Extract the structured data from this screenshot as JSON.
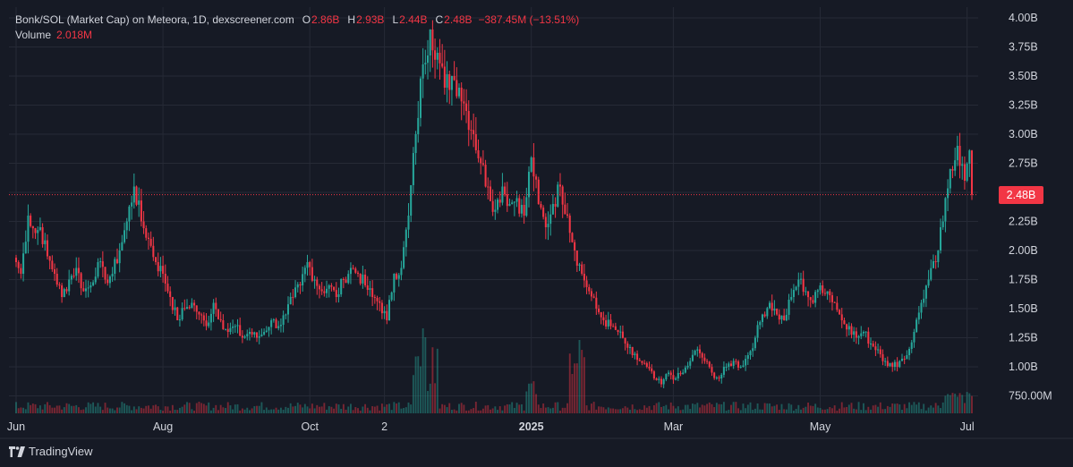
{
  "legend": {
    "title": "Bonk/SOL (Market Cap) on Meteora, 1D, dexscreener.com",
    "open_label": "O",
    "open_value": "2.86B",
    "high_label": "H",
    "high_value": "2.93B",
    "low_label": "L",
    "low_value": "2.44B",
    "close_label": "C",
    "close_value": "2.48B",
    "change": "−387.45M (−13.51%)",
    "volume_label": "Volume",
    "volume_value": "2.018M"
  },
  "price_badge": "2.48B",
  "branding": "TradingView",
  "colors": {
    "background": "#161a25",
    "up": "#26a69a",
    "down": "#f23645",
    "grid": "#262a36",
    "text": "#d1d4dc"
  },
  "chart_data": {
    "type": "candlestick",
    "title": "Bonk/SOL (Market Cap) on Meteora, 1D, dexscreener.com",
    "y_axis": {
      "ticks": [
        "4.00B",
        "3.75B",
        "3.50B",
        "3.25B",
        "3.00B",
        "2.75B",
        "2.50B",
        "2.25B",
        "2.00B",
        "1.75B",
        "1.50B",
        "1.25B",
        "1.00B",
        "750.00M"
      ],
      "tick_values": [
        4.0,
        3.75,
        3.5,
        3.25,
        3.0,
        2.75,
        2.5,
        2.25,
        2.0,
        1.75,
        1.5,
        1.25,
        1.0,
        0.75
      ],
      "range": [
        0.68,
        4.07
      ],
      "unit": "B"
    },
    "x_axis": {
      "ticks": [
        {
          "label": "Jun",
          "index": 0,
          "bold": false
        },
        {
          "label": "Aug",
          "index": 61,
          "bold": false
        },
        {
          "label": "Oct",
          "index": 122,
          "bold": false
        },
        {
          "label": "2",
          "index": 153,
          "bold": false
        },
        {
          "label": "2025",
          "index": 214,
          "bold": true
        },
        {
          "label": "Mar",
          "index": 273,
          "bold": false
        },
        {
          "label": "May",
          "index": 334,
          "bold": false
        },
        {
          "label": "Jul",
          "index": 395,
          "bold": false
        }
      ]
    },
    "last_price": 2.48,
    "price_anchors": [
      [
        0,
        1.9
      ],
      [
        2,
        1.8
      ],
      [
        5,
        2.3
      ],
      [
        8,
        2.15
      ],
      [
        10,
        2.2
      ],
      [
        13,
        1.95
      ],
      [
        16,
        1.8
      ],
      [
        19,
        1.6
      ],
      [
        22,
        1.75
      ],
      [
        25,
        1.85
      ],
      [
        28,
        1.65
      ],
      [
        31,
        1.7
      ],
      [
        34,
        1.9
      ],
      [
        37,
        1.75
      ],
      [
        40,
        1.8
      ],
      [
        43,
        2.0
      ],
      [
        46,
        2.25
      ],
      [
        49,
        2.55
      ],
      [
        52,
        2.25
      ],
      [
        55,
        2.1
      ],
      [
        58,
        1.9
      ],
      [
        61,
        1.8
      ],
      [
        64,
        1.6
      ],
      [
        67,
        1.4
      ],
      [
        70,
        1.5
      ],
      [
        73,
        1.55
      ],
      [
        76,
        1.45
      ],
      [
        79,
        1.35
      ],
      [
        82,
        1.55
      ],
      [
        85,
        1.4
      ],
      [
        88,
        1.3
      ],
      [
        91,
        1.35
      ],
      [
        94,
        1.25
      ],
      [
        97,
        1.3
      ],
      [
        100,
        1.25
      ],
      [
        103,
        1.3
      ],
      [
        106,
        1.4
      ],
      [
        109,
        1.35
      ],
      [
        112,
        1.45
      ],
      [
        115,
        1.6
      ],
      [
        118,
        1.7
      ],
      [
        121,
        1.9
      ],
      [
        124,
        1.75
      ],
      [
        127,
        1.65
      ],
      [
        130,
        1.7
      ],
      [
        133,
        1.6
      ],
      [
        136,
        1.75
      ],
      [
        139,
        1.85
      ],
      [
        142,
        1.8
      ],
      [
        145,
        1.7
      ],
      [
        148,
        1.6
      ],
      [
        151,
        1.55
      ],
      [
        154,
        1.4
      ],
      [
        157,
        1.8
      ],
      [
        160,
        1.85
      ],
      [
        163,
        2.3
      ],
      [
        166,
        3.0
      ],
      [
        169,
        3.6
      ],
      [
        172,
        3.9
      ],
      [
        175,
        3.7
      ],
      [
        178,
        3.4
      ],
      [
        181,
        3.5
      ],
      [
        184,
        3.4
      ],
      [
        187,
        3.2
      ],
      [
        190,
        3.0
      ],
      [
        193,
        2.75
      ],
      [
        196,
        2.55
      ],
      [
        199,
        2.35
      ],
      [
        202,
        2.55
      ],
      [
        205,
        2.4
      ],
      [
        208,
        2.45
      ],
      [
        211,
        2.3
      ],
      [
        214,
        2.8
      ],
      [
        217,
        2.4
      ],
      [
        220,
        2.2
      ],
      [
        223,
        2.4
      ],
      [
        226,
        2.55
      ],
      [
        229,
        2.3
      ],
      [
        232,
        2.0
      ],
      [
        235,
        1.8
      ],
      [
        238,
        1.65
      ],
      [
        241,
        1.5
      ],
      [
        244,
        1.4
      ],
      [
        247,
        1.35
      ],
      [
        250,
        1.3
      ],
      [
        253,
        1.2
      ],
      [
        256,
        1.1
      ],
      [
        259,
        1.05
      ],
      [
        262,
        1.0
      ],
      [
        265,
        0.9
      ],
      [
        268,
        0.85
      ],
      [
        271,
        0.95
      ],
      [
        274,
        0.9
      ],
      [
        277,
        0.95
      ],
      [
        280,
        1.05
      ],
      [
        283,
        1.15
      ],
      [
        286,
        1.05
      ],
      [
        289,
        0.95
      ],
      [
        292,
        0.9
      ],
      [
        295,
        1.0
      ],
      [
        298,
        1.05
      ],
      [
        301,
        1.0
      ],
      [
        304,
        1.1
      ],
      [
        307,
        1.25
      ],
      [
        310,
        1.45
      ],
      [
        313,
        1.55
      ],
      [
        316,
        1.45
      ],
      [
        319,
        1.4
      ],
      [
        322,
        1.6
      ],
      [
        325,
        1.75
      ],
      [
        328,
        1.65
      ],
      [
        331,
        1.55
      ],
      [
        334,
        1.7
      ],
      [
        337,
        1.65
      ],
      [
        340,
        1.55
      ],
      [
        343,
        1.4
      ],
      [
        346,
        1.35
      ],
      [
        349,
        1.25
      ],
      [
        352,
        1.3
      ],
      [
        355,
        1.2
      ],
      [
        358,
        1.15
      ],
      [
        361,
        1.05
      ],
      [
        364,
        1.0
      ],
      [
        367,
        1.05
      ],
      [
        370,
        1.1
      ],
      [
        373,
        1.3
      ],
      [
        376,
        1.55
      ],
      [
        379,
        1.75
      ],
      [
        382,
        1.9
      ],
      [
        385,
        2.25
      ],
      [
        388,
        2.7
      ],
      [
        391,
        2.9
      ],
      [
        394,
        2.6
      ],
      [
        396,
        2.86
      ],
      [
        397,
        2.48
      ]
    ]
  }
}
